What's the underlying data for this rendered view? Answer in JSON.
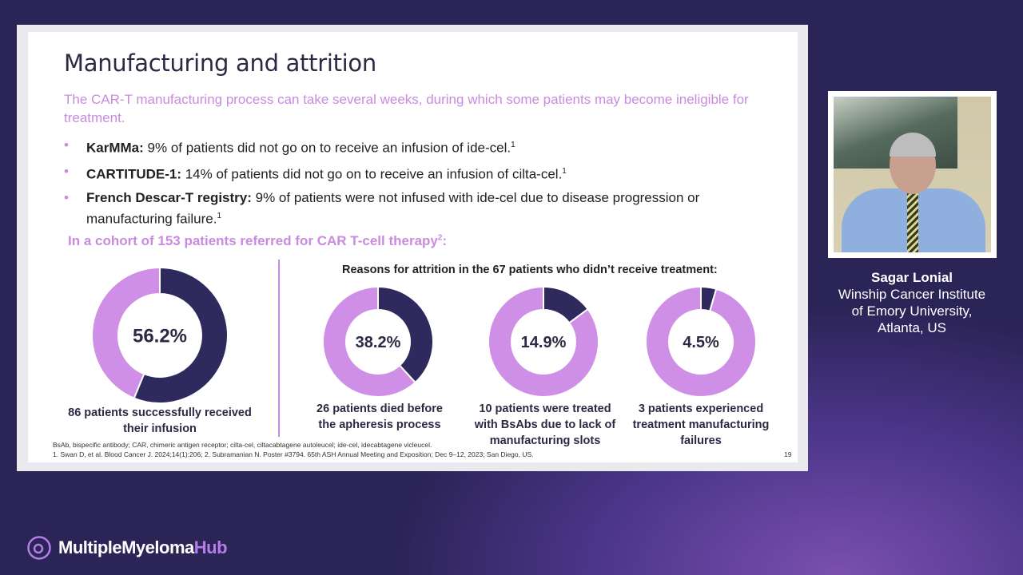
{
  "slide": {
    "title": "Manufacturing and attrition",
    "subtitle": "The CAR-T manufacturing process can take several weeks, during which some patients may become ineligible for treatment.",
    "bullets": [
      {
        "bold": "KarMMa:",
        "text": " 9% of patients did not go on to receive an infusion of ide-cel.",
        "sup": "1"
      },
      {
        "bold": "CARTITUDE-1:",
        "text": " 14% of patients did not go on to receive an infusion of cilta-cel.",
        "sup": "1"
      },
      {
        "bold": "French Descar-T registry:",
        "text": " 9% of patients were not infused with ide-cel due to disease progression or manufacturing failure.",
        "sup": "1"
      }
    ],
    "cohort_heading": "In a cohort of 153 patients referred for CAR T-cell therapy",
    "cohort_sup": "2",
    "cohort_colon": ":",
    "reasons_heading": "Reasons for attrition in the 67 patients who didn’t receive treatment:",
    "footnote_abbrev": "BsAb, bispecific antibody; CAR, chimeric antigen receptor; cilta-cel, ciltacabtagene autoleucel; ide-cel, idecabtagene vicleucel.",
    "footnote_refs": "1. Swan D, et al. Blood Cancer J. 2024;14(1):206; 2. Subramanian N. Poster #3794. 65th ASH Annual Meeting and Exposition; Dec 9–12, 2023; San Diego, US.",
    "page_number": "19"
  },
  "chart_data": [
    {
      "type": "pie",
      "donut": true,
      "values": [
        56.2,
        43.8
      ],
      "label": "56.2%",
      "caption": "86 patients successfully received their infusion"
    },
    {
      "type": "pie",
      "donut": true,
      "values": [
        38.2,
        61.8
      ],
      "label": "38.2%",
      "caption": "26 patients died before the apheresis process"
    },
    {
      "type": "pie",
      "donut": true,
      "values": [
        14.9,
        85.1
      ],
      "label": "14.9%",
      "caption": "10 patients were treated with BsAbs due to lack of manufacturing slots"
    },
    {
      "type": "pie",
      "donut": true,
      "values": [
        4.5,
        95.5
      ],
      "label": "4.5%",
      "caption": "3 patients experienced treatment manufacturing failures"
    }
  ],
  "colors": {
    "highlight": "#2e2a5e",
    "remainder": "#cf8fe6",
    "accent": "#c98be0",
    "background": "#2b2457"
  },
  "speaker": {
    "name": "Sagar Lonial",
    "line1": "Winship Cancer Institute",
    "line2": "of Emory University,",
    "line3": "Atlanta, US"
  },
  "brand": {
    "main": "MultipleMyeloma",
    "accent": "Hub",
    "icon": "logo-circle-icon"
  }
}
